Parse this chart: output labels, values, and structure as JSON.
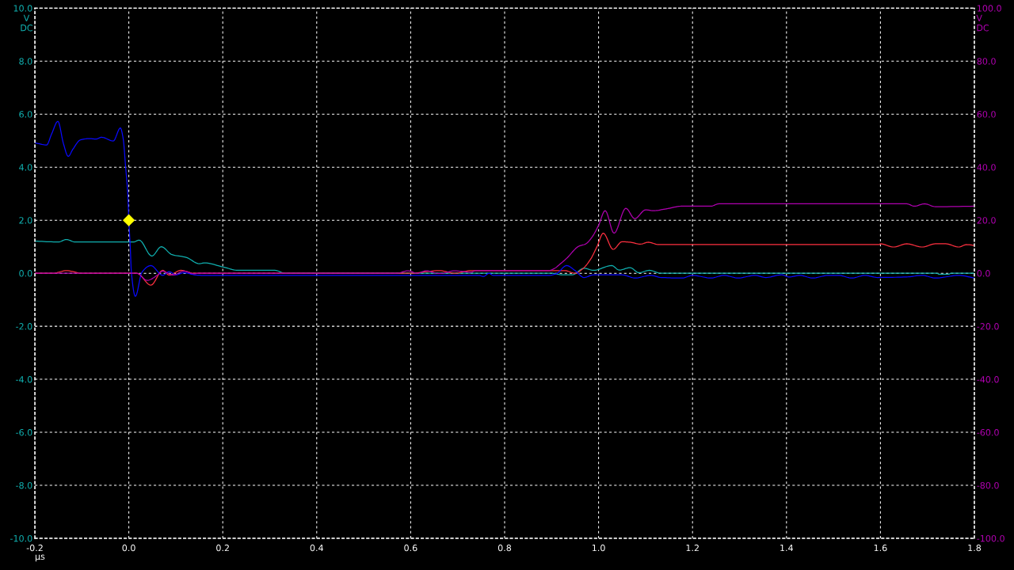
{
  "chart_data": {
    "type": "line",
    "xlabel": "µs",
    "ylabel": "V\nDC",
    "y2label": "V\nDC",
    "xlim": [
      -0.2,
      1.8
    ],
    "xticks": [
      {
        "value": -0.2,
        "label": "-0.2"
      },
      {
        "value": 0.0,
        "label": "0.0"
      },
      {
        "value": 0.2,
        "label": "0.2"
      },
      {
        "value": 0.4,
        "label": "0.4"
      },
      {
        "value": 0.6,
        "label": "0.6"
      },
      {
        "value": 0.8,
        "label": "0.8"
      },
      {
        "value": 1.0,
        "label": "1.0"
      },
      {
        "value": 1.2,
        "label": "1.2"
      },
      {
        "value": 1.4,
        "label": "1.4"
      },
      {
        "value": 1.6,
        "label": "1.6"
      },
      {
        "value": 1.8,
        "label": "1.8"
      }
    ],
    "ylim": [
      -10,
      10
    ],
    "yticks": [
      {
        "value": -10,
        "label": "-10.0"
      },
      {
        "value": -8,
        "label": "-8.0"
      },
      {
        "value": -6,
        "label": "-6.0"
      },
      {
        "value": -4,
        "label": "-4.0"
      },
      {
        "value": -2,
        "label": "-2.0"
      },
      {
        "value": 0,
        "label": "0.0"
      },
      {
        "value": 2,
        "label": "2.0"
      },
      {
        "value": 4,
        "label": "4.0"
      },
      {
        "value": 6,
        "label": "6.0"
      },
      {
        "value": 8,
        "label": "8.0"
      },
      {
        "value": 10,
        "label": "10.0"
      }
    ],
    "y2lim": [
      -100,
      100
    ],
    "y2ticks": [
      {
        "value": -100,
        "label": "-100.0"
      },
      {
        "value": -80,
        "label": "-80.0"
      },
      {
        "value": -60,
        "label": "-60.0"
      },
      {
        "value": -40,
        "label": "-40.0"
      },
      {
        "value": -20,
        "label": "-20.0"
      },
      {
        "value": 0,
        "label": "0.0"
      },
      {
        "value": 20,
        "label": "20.0"
      },
      {
        "value": 40,
        "label": "40.0"
      },
      {
        "value": 60,
        "label": "60.0"
      },
      {
        "value": 80,
        "label": "80.0"
      },
      {
        "value": 100,
        "label": "100.0"
      }
    ],
    "grid": true,
    "series": [
      {
        "color": "#10b0b0",
        "x": [
          -0.2,
          -0.15,
          -0.133,
          -0.114,
          0.0,
          0.01,
          0.022,
          0.049,
          0.069,
          0.092,
          0.122,
          0.15,
          0.161,
          0.2,
          0.233,
          0.311,
          0.333,
          0.9,
          0.922,
          0.944,
          0.969,
          0.989,
          1.028,
          1.044,
          1.067,
          1.086,
          1.108,
          1.133,
          1.72,
          1.725,
          1.745,
          1.75,
          1.8
        ],
        "values": [
          1.21,
          1.18,
          1.27,
          1.18,
          1.18,
          1.18,
          1.25,
          0.65,
          1.0,
          0.7,
          0.6,
          0.36,
          0.39,
          0.24,
          0.11,
          0.11,
          0.0,
          0.0,
          -0.06,
          -0.06,
          0.19,
          0.11,
          0.29,
          0.12,
          0.21,
          0.02,
          0.11,
          0.0,
          0.0,
          -0.04,
          -0.04,
          0.0,
          0.0
        ]
      },
      {
        "color": "#ff3040",
        "x": [
          -0.2,
          -0.161,
          -0.133,
          -0.1,
          0.017,
          0.047,
          0.072,
          0.086,
          0.111,
          0.139,
          0.6,
          0.661,
          0.694,
          0.728,
          0.928,
          0.95,
          0.967,
          0.983,
          0.997,
          1.01,
          1.031,
          1.05,
          1.067,
          1.089,
          1.106,
          1.128,
          1.597,
          1.6,
          1.628,
          1.656,
          1.689,
          1.717,
          1.739,
          1.767,
          1.783,
          1.8
        ],
        "values": [
          0.0,
          0.0,
          0.1,
          0.0,
          0.0,
          -0.45,
          0.11,
          -0.07,
          0.11,
          0.0,
          0.0,
          0.1,
          0.0,
          0.1,
          0.1,
          0.0,
          0.18,
          0.53,
          1.02,
          1.51,
          0.9,
          1.19,
          1.17,
          1.1,
          1.17,
          1.08,
          1.08,
          1.11,
          0.99,
          1.11,
          0.99,
          1.11,
          1.11,
          0.99,
          1.08,
          1.05
        ]
      },
      {
        "color": "#b000b0",
        "axis": "y2",
        "x": [
          -0.2,
          0.017,
          0.039,
          0.061,
          0.072,
          0.094,
          0.117,
          0.139,
          0.15,
          0.57,
          0.594,
          0.614,
          0.633,
          0.661,
          0.694,
          0.728,
          0.739,
          0.894,
          0.906,
          0.917,
          0.933,
          0.958,
          0.972,
          0.986,
          1.0,
          1.014,
          1.033,
          1.058,
          1.077,
          1.1,
          1.117,
          1.144,
          1.178,
          1.239,
          1.256,
          1.656,
          1.672,
          1.694,
          1.717,
          1.8
        ],
        "values": [
          0.0,
          0.0,
          -2.7,
          -0.7,
          0.8,
          -0.7,
          0.8,
          -0.2,
          0.0,
          0.0,
          0.9,
          0.0,
          0.9,
          -0.1,
          0.9,
          0.4,
          1.0,
          1.0,
          1.8,
          3.3,
          5.8,
          10.2,
          11.0,
          13.6,
          18.1,
          23.6,
          15.1,
          24.5,
          20.6,
          23.9,
          23.6,
          24.3,
          25.3,
          25.3,
          26.2,
          26.2,
          25.3,
          26.2,
          25.1,
          25.3
        ]
      },
      {
        "color": "#0a0aff",
        "x": [
          -0.2,
          -0.175,
          -0.164,
          -0.151,
          -0.139,
          -0.129,
          -0.119,
          -0.103,
          -0.083,
          -0.07,
          -0.058,
          -0.033,
          -0.018,
          -0.012,
          -0.007,
          -0.002,
          0.0,
          0.003,
          0.0055,
          0.014,
          0.028,
          0.047,
          0.072,
          0.086,
          0.1,
          0.117,
          0.144,
          0.16,
          0.745,
          0.755,
          0.767,
          0.775,
          0.895,
          0.91,
          0.932,
          0.95,
          0.969,
          0.989,
          1.05,
          1.078,
          1.111,
          1.133,
          1.178,
          1.2,
          1.239,
          1.267,
          1.297,
          1.333,
          1.356,
          1.389,
          1.406,
          1.428,
          1.456,
          1.489,
          1.511,
          1.539,
          1.567,
          1.594,
          1.656,
          1.689,
          1.717,
          1.767,
          1.8
        ],
        "values": [
          4.92,
          4.84,
          5.27,
          5.73,
          4.88,
          4.41,
          4.68,
          5.03,
          5.08,
          5.06,
          5.13,
          4.99,
          5.48,
          5.08,
          4.05,
          2.91,
          2.0,
          1.03,
          0.04,
          -0.87,
          0.04,
          0.29,
          -0.08,
          0.06,
          -0.06,
          0.02,
          -0.07,
          -0.08,
          -0.08,
          -0.12,
          0.0,
          -0.08,
          -0.08,
          -0.02,
          0.29,
          0.1,
          -0.16,
          -0.06,
          -0.06,
          -0.18,
          -0.08,
          -0.16,
          -0.18,
          -0.08,
          -0.18,
          -0.08,
          -0.18,
          -0.08,
          -0.16,
          -0.06,
          -0.14,
          -0.08,
          -0.18,
          -0.08,
          -0.08,
          -0.18,
          -0.08,
          -0.16,
          -0.14,
          -0.08,
          -0.18,
          -0.08,
          -0.18
        ]
      },
      {
        "type": "scatter",
        "color": "#ffff00",
        "marker": "diamond",
        "x": [
          0.0
        ],
        "values": [
          2.0
        ]
      }
    ]
  }
}
